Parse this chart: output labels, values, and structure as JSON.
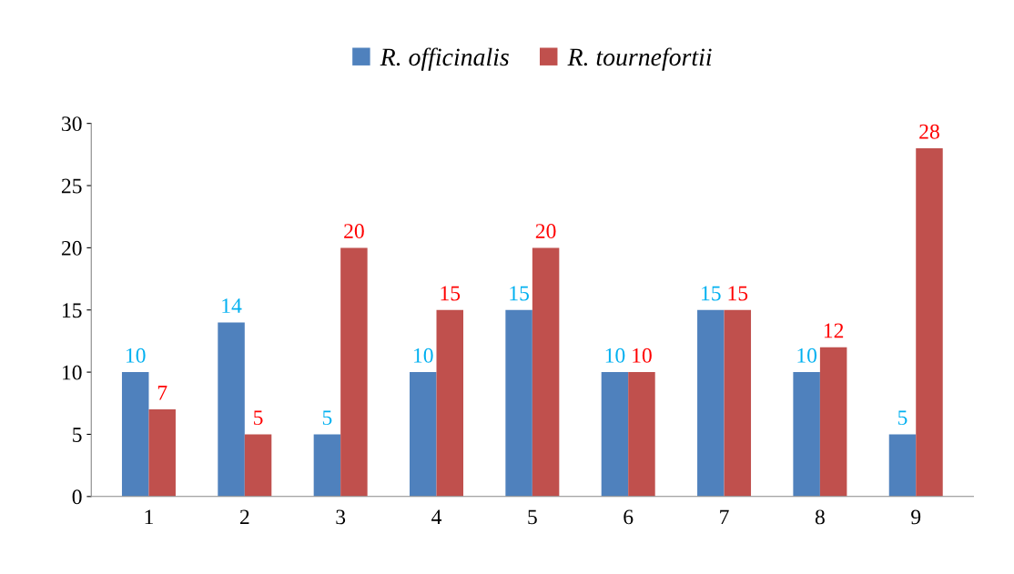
{
  "chart_data": {
    "type": "bar",
    "categories": [
      "1",
      "2",
      "3",
      "4",
      "5",
      "6",
      "7",
      "8",
      "9"
    ],
    "series": [
      {
        "name": "R. officinalis",
        "color": "#4f81bd",
        "values": [
          10,
          14,
          5,
          10,
          15,
          10,
          15,
          10,
          5
        ]
      },
      {
        "name": "R. tournefortii",
        "color": "#c0504d",
        "values": [
          7,
          5,
          20,
          15,
          20,
          10,
          15,
          12,
          28
        ]
      }
    ],
    "ylim": [
      0,
      30
    ],
    "yticks": [
      0,
      5,
      10,
      15,
      20,
      25,
      30
    ],
    "grid": false,
    "legend": "top",
    "data_labels": true
  }
}
